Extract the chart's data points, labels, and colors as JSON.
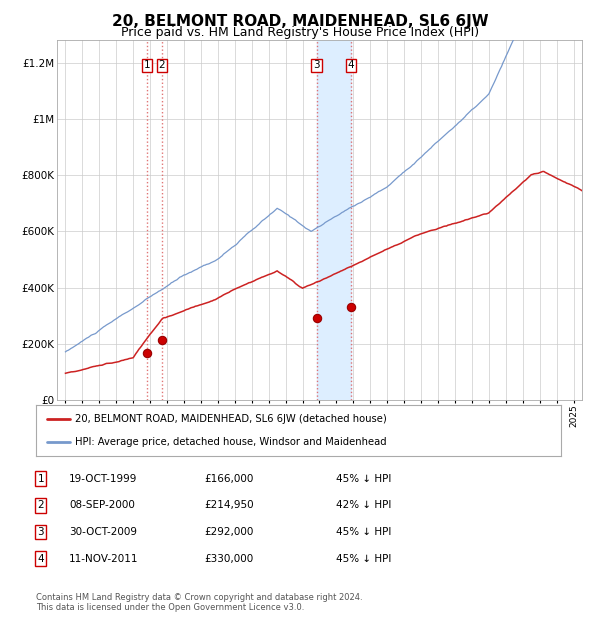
{
  "title": "20, BELMONT ROAD, MAIDENHEAD, SL6 6JW",
  "subtitle": "Price paid vs. HM Land Registry's House Price Index (HPI)",
  "title_fontsize": 11,
  "subtitle_fontsize": 9,
  "xlim": [
    1994.5,
    2025.5
  ],
  "ylim": [
    0,
    1280000
  ],
  "yticks": [
    0,
    200000,
    400000,
    600000,
    800000,
    1000000,
    1200000
  ],
  "ytick_labels": [
    "£0",
    "£200K",
    "£400K",
    "£600K",
    "£800K",
    "£1M",
    "£1.2M"
  ],
  "xticks": [
    1995,
    1996,
    1997,
    1998,
    1999,
    2000,
    2001,
    2002,
    2003,
    2004,
    2005,
    2006,
    2007,
    2008,
    2009,
    2010,
    2011,
    2012,
    2013,
    2014,
    2015,
    2016,
    2017,
    2018,
    2019,
    2020,
    2021,
    2022,
    2023,
    2024,
    2025
  ],
  "sale_dates": [
    1999.8,
    2000.69,
    2009.83,
    2011.87
  ],
  "sale_prices": [
    166000,
    214950,
    292000,
    330000
  ],
  "sale_labels": [
    "1",
    "2",
    "3",
    "4"
  ],
  "vline_color": "#dd6666",
  "vline_style": ":",
  "shade_pairs": [
    [
      2009.83,
      2011.87
    ]
  ],
  "shade_color": "#ddeeff",
  "sale_dot_color": "#cc0000",
  "hpi_line_color": "#7799cc",
  "price_line_color": "#cc2222",
  "legend_label_price": "20, BELMONT ROAD, MAIDENHEAD, SL6 6JW (detached house)",
  "legend_label_hpi": "HPI: Average price, detached house, Windsor and Maidenhead",
  "table_rows": [
    [
      "1",
      "19-OCT-1999",
      "£166,000",
      "45% ↓ HPI"
    ],
    [
      "2",
      "08-SEP-2000",
      "£214,950",
      "42% ↓ HPI"
    ],
    [
      "3",
      "30-OCT-2009",
      "£292,000",
      "45% ↓ HPI"
    ],
    [
      "4",
      "11-NOV-2011",
      "£330,000",
      "45% ↓ HPI"
    ]
  ],
  "footnote": "Contains HM Land Registry data © Crown copyright and database right 2024.\nThis data is licensed under the Open Government Licence v3.0.",
  "bg_color": "#ffffff",
  "grid_color": "#cccccc"
}
